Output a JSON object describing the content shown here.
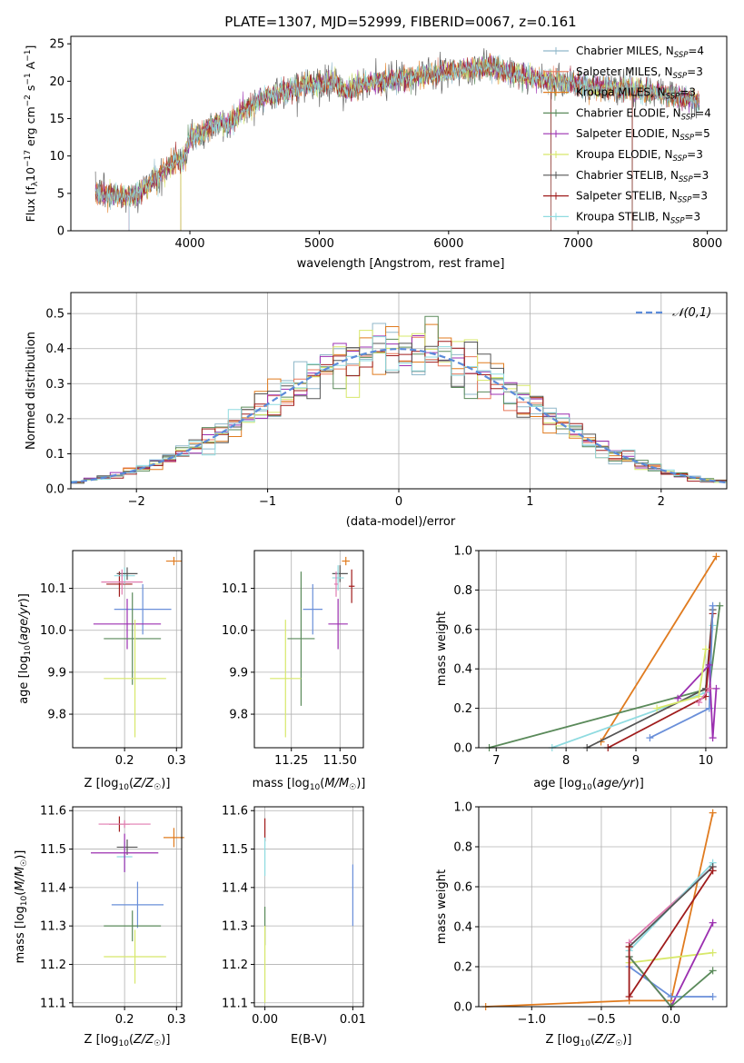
{
  "figure_title": "PLATE=1307, MJD=52999, FIBERID=0067, z=0.161",
  "colors": {
    "chabrier_miles": "#8fb7c9",
    "salpeter_miles": "#e8785a",
    "kroupa_miles": "#e07b1f",
    "chabrier_elodie": "#5a8a5a",
    "salpeter_elodie": "#9b2fb0",
    "kroupa_elodie": "#d7e86a",
    "chabrier_stelib": "#555555",
    "salpeter_stelib": "#a01c1c",
    "kroupa_stelib": "#8fdbe0",
    "normal_curve": "#5b8bd9",
    "pink": "#e07bb0",
    "blue": "#6a8fd9"
  },
  "chart_data": [
    {
      "id": "spectrum",
      "type": "line",
      "title": "PLATE=1307, MJD=52999, FIBERID=0067, z=0.161",
      "xlabel": "wavelength [Angstrom, rest frame]",
      "ylabel": "Flux [f_λ10^-17 erg cm^-2 s^-1 A^-1]",
      "xlim": [
        3080,
        8150
      ],
      "ylim": [
        0,
        26
      ],
      "xticks": [
        "4000",
        "5000",
        "6000",
        "7000",
        "8000"
      ],
      "yticks": [
        "0",
        "5",
        "10",
        "15",
        "20",
        "25"
      ],
      "grid": false,
      "legend_position": "right",
      "legend": [
        {
          "base": "Chabrier MILES, N",
          "sub": "SSP",
          "suffix": "=4",
          "color_key": "chabrier_miles"
        },
        {
          "base": "Salpeter MILES, N",
          "sub": "SSP",
          "suffix": "=3",
          "color_key": "salpeter_miles"
        },
        {
          "base": "Kroupa MILES, N",
          "sub": "SSP",
          "suffix": "=3",
          "color_key": "kroupa_miles"
        },
        {
          "base": "Chabrier ELODIE, N",
          "sub": "SSP",
          "suffix": "=4",
          "color_key": "chabrier_elodie"
        },
        {
          "base": "Salpeter ELODIE, N",
          "sub": "SSP",
          "suffix": "=5",
          "color_key": "salpeter_elodie"
        },
        {
          "base": "Kroupa ELODIE, N",
          "sub": "SSP",
          "suffix": "=3",
          "color_key": "kroupa_elodie"
        },
        {
          "base": "Chabrier STELIB, N",
          "sub": "SSP",
          "suffix": "=3",
          "color_key": "chabrier_stelib"
        },
        {
          "base": "Salpeter STELIB, N",
          "sub": "SSP",
          "suffix": "=3",
          "color_key": "salpeter_stelib"
        },
        {
          "base": "Kroupa STELIB, N",
          "sub": "SSP",
          "suffix": "=3",
          "color_key": "kroupa_stelib"
        }
      ],
      "anchors": [
        [
          3270,
          5
        ],
        [
          3400,
          4.8
        ],
        [
          3500,
          4.6
        ],
        [
          3600,
          4.8
        ],
        [
          3700,
          6.5
        ],
        [
          3800,
          8
        ],
        [
          3900,
          9.5
        ],
        [
          3950,
          9.2
        ],
        [
          4000,
          12.5
        ],
        [
          4100,
          13
        ],
        [
          4200,
          14.5
        ],
        [
          4300,
          14
        ],
        [
          4400,
          16
        ],
        [
          4500,
          17
        ],
        [
          4600,
          18
        ],
        [
          4700,
          18.5
        ],
        [
          4800,
          19
        ],
        [
          4900,
          19.5
        ],
        [
          5000,
          19.5
        ],
        [
          5100,
          20
        ],
        [
          5200,
          18.5
        ],
        [
          5300,
          19.5
        ],
        [
          5500,
          20
        ],
        [
          5700,
          20.5
        ],
        [
          5900,
          21
        ],
        [
          6100,
          21.5
        ],
        [
          6300,
          22
        ],
        [
          6500,
          21
        ],
        [
          6800,
          20
        ],
        [
          7000,
          19.5
        ],
        [
          7200,
          19
        ],
        [
          7400,
          19
        ],
        [
          7600,
          18.5
        ],
        [
          7800,
          17.8
        ],
        [
          7940,
          17.5
        ]
      ],
      "dips": [
        [
          3530,
          0
        ],
        [
          3930,
          0
        ],
        [
          6790,
          0
        ],
        [
          7420,
          0
        ]
      ]
    },
    {
      "id": "residuals",
      "type": "histogram",
      "xlabel": "(data-model)/error",
      "ylabel": "Normed distribution",
      "xlim": [
        -2.5,
        2.5
      ],
      "ylim": [
        0,
        0.56
      ],
      "xticks": [
        "−2",
        "−1",
        "0",
        "1",
        "2"
      ],
      "yticks": [
        "0.0",
        "0.1",
        "0.2",
        "0.3",
        "0.4",
        "0.5"
      ],
      "grid": true,
      "legend": [
        "𝒩(0,1)"
      ],
      "legend_position": "top-right",
      "bin_width": 0.1
    },
    {
      "id": "age_vs_Z",
      "type": "scatter",
      "xlabel": "Z [log₁₀(Z/Z☉)]",
      "ylabel": "age  [log₁₀(age/yr)]",
      "xlim": [
        0.1,
        0.31
      ],
      "ylim": [
        9.72,
        10.19
      ],
      "xticks": [
        [
          "0.2",
          0.2
        ],
        [
          "0.3",
          0.3
        ]
      ],
      "yticks": [
        [
          "9.8",
          9.8
        ],
        [
          "9.9",
          9.9
        ],
        [
          "10.0",
          10.0
        ],
        [
          "10.1",
          10.1
        ]
      ],
      "points": [
        {
          "x": 0.19,
          "y": 10.11,
          "xerr": 0.025,
          "yerr": 0.03,
          "color_key": "salpeter_stelib"
        },
        {
          "x": 0.2,
          "y": 10.13,
          "xerr": 0.02,
          "yerr": 0.02,
          "color_key": "kroupa_stelib"
        },
        {
          "x": 0.205,
          "y": 10.135,
          "xerr": 0.02,
          "yerr": 0.015,
          "color_key": "chabrier_stelib"
        },
        {
          "x": 0.195,
          "y": 10.115,
          "xerr": 0.04,
          "yerr": 0.03,
          "color_key": "pink"
        },
        {
          "x": 0.295,
          "y": 10.165,
          "xerr": 0.015,
          "yerr": 0.01,
          "color_key": "kroupa_miles"
        },
        {
          "x": 0.235,
          "y": 10.05,
          "xerr": 0.055,
          "yerr": 0.06,
          "color_key": "blue"
        },
        {
          "x": 0.205,
          "y": 10.015,
          "xerr": 0.065,
          "yerr": 0.06,
          "color_key": "salpeter_elodie"
        },
        {
          "x": 0.215,
          "y": 9.98,
          "xerr": 0.055,
          "yerr": 0.11,
          "color_key": "chabrier_elodie"
        },
        {
          "x": 0.22,
          "y": 9.885,
          "xerr": 0.06,
          "yerr": 0.14,
          "color_key": "kroupa_elodie"
        }
      ]
    },
    {
      "id": "age_vs_mass",
      "type": "scatter",
      "xlabel": "mass [log₁₀(M/M☉)]",
      "ylabel": "",
      "xlim": [
        11.06,
        11.62
      ],
      "ylim": [
        9.72,
        10.19
      ],
      "xticks": [
        [
          "11.25",
          11.25
        ],
        [
          "11.50",
          11.5
        ]
      ],
      "yticks": [
        [
          "9.8",
          9.8
        ],
        [
          "9.9",
          9.9
        ],
        [
          "10.0",
          10.0
        ],
        [
          "10.1",
          10.1
        ]
      ],
      "points": [
        {
          "x": 11.53,
          "y": 10.165,
          "xerr": 0.02,
          "yerr": 0.01,
          "color_key": "kroupa_miles"
        },
        {
          "x": 11.5,
          "y": 10.135,
          "xerr": 0.04,
          "yerr": 0.02,
          "color_key": "chabrier_stelib"
        },
        {
          "x": 11.49,
          "y": 10.125,
          "xerr": 0.03,
          "yerr": 0.03,
          "color_key": "kroupa_stelib"
        },
        {
          "x": 11.56,
          "y": 10.105,
          "xerr": 0.015,
          "yerr": 0.04,
          "color_key": "salpeter_stelib"
        },
        {
          "x": 11.48,
          "y": 10.11,
          "xerr": 0.01,
          "yerr": 0.03,
          "color_key": "pink"
        },
        {
          "x": 11.36,
          "y": 10.05,
          "xerr": 0.05,
          "yerr": 0.06,
          "color_key": "blue"
        },
        {
          "x": 11.49,
          "y": 10.015,
          "xerr": 0.05,
          "yerr": 0.06,
          "color_key": "salpeter_elodie"
        },
        {
          "x": 11.3,
          "y": 9.98,
          "xerr": 0.07,
          "yerr": 0.16,
          "color_key": "chabrier_elodie"
        },
        {
          "x": 11.22,
          "y": 9.885,
          "xerr": 0.08,
          "yerr": 0.14,
          "color_key": "kroupa_elodie"
        }
      ]
    },
    {
      "id": "weight_vs_age",
      "type": "line",
      "xlabel": "age  [log₁₀(age/yr)]",
      "ylabel": "mass weight",
      "xlim": [
        6.75,
        10.3
      ],
      "ylim": [
        0,
        1
      ],
      "xticks": [
        [
          "7",
          7
        ],
        [
          "8",
          8
        ],
        [
          "9",
          9
        ],
        [
          "10",
          10
        ]
      ],
      "yticks": [
        [
          "0.0",
          0
        ],
        [
          "0.2",
          0.2
        ],
        [
          "0.4",
          0.4
        ],
        [
          "0.6",
          0.6
        ],
        [
          "0.8",
          0.8
        ],
        [
          "1.0",
          1.0
        ]
      ],
      "grid": true,
      "series": [
        {
          "color_key": "kroupa_miles",
          "points": [
            [
              8.5,
              0.03
            ],
            [
              10.15,
              0.97
            ]
          ]
        },
        {
          "color_key": "chabrier_elodie",
          "points": [
            [
              6.9,
              0.0
            ],
            [
              10.05,
              0.3
            ],
            [
              10.2,
              0.72
            ]
          ]
        },
        {
          "color_key": "kroupa_stelib",
          "points": [
            [
              7.8,
              0.0
            ],
            [
              10.0,
              0.28
            ],
            [
              10.1,
              0.62
            ]
          ]
        },
        {
          "color_key": "chabrier_stelib",
          "points": [
            [
              8.3,
              0.0
            ],
            [
              10.0,
              0.3
            ],
            [
              10.1,
              0.7
            ]
          ]
        },
        {
          "color_key": "salpeter_stelib",
          "points": [
            [
              8.6,
              0.0
            ],
            [
              10.0,
              0.26
            ],
            [
              10.1,
              0.68
            ]
          ]
        },
        {
          "color_key": "blue",
          "points": [
            [
              9.2,
              0.05
            ],
            [
              10.05,
              0.2
            ],
            [
              10.1,
              0.72
            ]
          ]
        },
        {
          "color_key": "salpeter_elodie",
          "points": [
            [
              9.6,
              0.25
            ],
            [
              10.05,
              0.42
            ],
            [
              10.1,
              0.05
            ],
            [
              10.15,
              0.3
            ]
          ]
        },
        {
          "color_key": "kroupa_elodie",
          "points": [
            [
              9.3,
              0.2
            ],
            [
              9.9,
              0.26
            ],
            [
              10.0,
              0.5
            ]
          ]
        },
        {
          "color_key": "pink",
          "points": [
            [
              9.9,
              0.23
            ],
            [
              10.05,
              0.3
            ]
          ]
        }
      ]
    },
    {
      "id": "mass_vs_Z",
      "type": "scatter",
      "xlabel": "Z [log₁₀(Z/Z☉)]",
      "ylabel": "mass [log₁₀(M/M☉)]",
      "xlim": [
        0.1,
        0.31
      ],
      "ylim": [
        11.09,
        11.61
      ],
      "xticks": [
        [
          "0.2",
          0.2
        ],
        [
          "0.3",
          0.3
        ]
      ],
      "yticks": [
        [
          "11.1",
          11.1
        ],
        [
          "11.2",
          11.2
        ],
        [
          "11.3",
          11.3
        ],
        [
          "11.4",
          11.4
        ],
        [
          "11.5",
          11.5
        ],
        [
          "11.6",
          11.6
        ]
      ],
      "points": [
        {
          "x": 0.19,
          "y": 11.565,
          "xerr": 0.02,
          "yerr": 0.02,
          "color_key": "salpeter_stelib"
        },
        {
          "x": 0.2,
          "y": 11.565,
          "xerr": 0.05,
          "yerr": 0.01,
          "color_key": "pink"
        },
        {
          "x": 0.295,
          "y": 11.53,
          "xerr": 0.02,
          "yerr": 0.025,
          "color_key": "kroupa_miles"
        },
        {
          "x": 0.205,
          "y": 11.505,
          "xerr": 0.02,
          "yerr": 0.02,
          "color_key": "chabrier_stelib"
        },
        {
          "x": 0.2,
          "y": 11.48,
          "xerr": 0.015,
          "yerr": 0.04,
          "color_key": "kroupa_stelib"
        },
        {
          "x": 0.2,
          "y": 11.49,
          "xerr": 0.065,
          "yerr": 0.05,
          "color_key": "salpeter_elodie"
        },
        {
          "x": 0.225,
          "y": 11.355,
          "xerr": 0.05,
          "yerr": 0.06,
          "color_key": "blue"
        },
        {
          "x": 0.215,
          "y": 11.3,
          "xerr": 0.055,
          "yerr": 0.04,
          "color_key": "chabrier_elodie"
        },
        {
          "x": 0.22,
          "y": 11.22,
          "xerr": 0.06,
          "yerr": 0.07,
          "color_key": "kroupa_elodie"
        }
      ]
    },
    {
      "id": "mass_vs_ebv",
      "type": "scatter",
      "xlabel": "E(B-V)",
      "ylabel": "",
      "xlim": [
        -0.0012,
        0.0112
      ],
      "ylim": [
        11.09,
        11.61
      ],
      "xticks": [
        [
          "0.00",
          0.0
        ],
        [
          "0.01",
          0.01
        ]
      ],
      "yticks": [
        [
          "11.1",
          11.1
        ],
        [
          "11.2",
          11.2
        ],
        [
          "11.3",
          11.3
        ],
        [
          "11.4",
          11.4
        ],
        [
          "11.5",
          11.5
        ],
        [
          "11.6",
          11.6
        ]
      ],
      "grid": true,
      "points": [
        {
          "x": 0.0,
          "y": 11.55,
          "xerr": 0.0,
          "yerr": 0.03,
          "color_key": "salpeter_stelib"
        },
        {
          "x": 0.0,
          "y": 11.48,
          "xerr": 0.0,
          "yerr": 0.05,
          "color_key": "kroupa_stelib"
        },
        {
          "x": 0.0,
          "y": 11.3,
          "xerr": 0.0,
          "yerr": 0.05,
          "color_key": "chabrier_elodie"
        },
        {
          "x": 0.0,
          "y": 11.2,
          "xerr": 0.0,
          "yerr": 0.1,
          "color_key": "kroupa_elodie"
        },
        {
          "x": 0.01,
          "y": 11.38,
          "xerr": 0.0,
          "yerr": 0.08,
          "color_key": "blue"
        }
      ]
    },
    {
      "id": "weight_vs_Z",
      "type": "line",
      "xlabel": "Z [log₁₀(Z/Z☉)]",
      "ylabel": "mass weight",
      "xlim": [
        -1.38,
        0.4
      ],
      "ylim": [
        0,
        1
      ],
      "xticks": [
        [
          "−1.0",
          -1.0
        ],
        [
          "−0.5",
          -0.5
        ],
        [
          "0.0",
          0.0
        ]
      ],
      "yticks": [
        [
          "0.0",
          0
        ],
        [
          "0.2",
          0.2
        ],
        [
          "0.4",
          0.4
        ],
        [
          "0.6",
          0.6
        ],
        [
          "0.8",
          0.8
        ],
        [
          "1.0",
          1.0
        ]
      ],
      "grid": true,
      "series": [
        {
          "color_key": "kroupa_miles",
          "points": [
            [
              -1.33,
              0.0
            ],
            [
              -0.3,
              0.03
            ],
            [
              0.0,
              0.03
            ],
            [
              0.3,
              0.97
            ]
          ]
        },
        {
          "color_key": "pink",
          "points": [
            [
              -0.3,
              0.32
            ],
            [
              0.3,
              0.7
            ]
          ]
        },
        {
          "color_key": "kroupa_elodie",
          "points": [
            [
              -0.3,
              0.22
            ],
            [
              0.3,
              0.27
            ]
          ]
        },
        {
          "color_key": "salpeter_elodie",
          "points": [
            [
              -0.3,
              0.25
            ],
            [
              0.0,
              0.0
            ],
            [
              0.3,
              0.42
            ]
          ]
        },
        {
          "color_key": "blue",
          "points": [
            [
              -0.3,
              0.2
            ],
            [
              0.0,
              0.05
            ],
            [
              0.3,
              0.05
            ]
          ]
        },
        {
          "color_key": "chabrier_elodie",
          "points": [
            [
              -0.3,
              0.25
            ],
            [
              0.0,
              0.0
            ],
            [
              0.3,
              0.18
            ]
          ]
        },
        {
          "color_key": "kroupa_stelib",
          "points": [
            [
              -0.3,
              0.28
            ],
            [
              0.3,
              0.72
            ]
          ]
        },
        {
          "color_key": "chabrier_stelib",
          "points": [
            [
              -0.3,
              0.3
            ],
            [
              0.3,
              0.7
            ]
          ]
        },
        {
          "color_key": "salpeter_stelib",
          "points": [
            [
              -0.3,
              0.3
            ],
            [
              -0.3,
              0.05
            ],
            [
              0.3,
              0.68
            ]
          ]
        }
      ]
    }
  ]
}
